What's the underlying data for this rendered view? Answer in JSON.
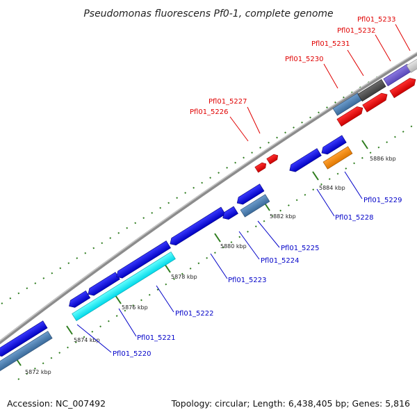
{
  "title": "Pseudomonas fluorescens Pf0-1, complete genome",
  "footer": {
    "accession": "Accession: NC_007492",
    "summary": "Topology: circular; Length: 6,438,405 bp; Genes: 5,816"
  },
  "colors": {
    "backbone": "#8c8c8c",
    "tick": "#2e7d1e",
    "forward_label": "#e00000",
    "reverse_label": "#0000c8"
  },
  "ticks": [
    {
      "label": "5872 kbp"
    },
    {
      "label": "5874 kbp"
    },
    {
      "label": "5876 kbp"
    },
    {
      "label": "5878 kbp"
    },
    {
      "label": "5880 kbp"
    },
    {
      "label": "5882 kbp"
    },
    {
      "label": "5884 kbp"
    },
    {
      "label": "5886 kbp"
    }
  ],
  "forward_labels": [
    {
      "name": "Pfl01_5226"
    },
    {
      "name": "Pfl01_5227"
    },
    {
      "name": "Pfl01_5230"
    },
    {
      "name": "Pfl01_5231"
    },
    {
      "name": "Pfl01_5232"
    },
    {
      "name": "Pfl01_5233"
    }
  ],
  "reverse_labels": [
    {
      "name": "Pfl01_5220"
    },
    {
      "name": "Pfl01_5221"
    },
    {
      "name": "Pfl01_5222"
    },
    {
      "name": "Pfl01_5223"
    },
    {
      "name": "Pfl01_5224"
    },
    {
      "name": "Pfl01_5225"
    },
    {
      "name": "Pfl01_5228"
    },
    {
      "name": "Pfl01_5229"
    }
  ]
}
